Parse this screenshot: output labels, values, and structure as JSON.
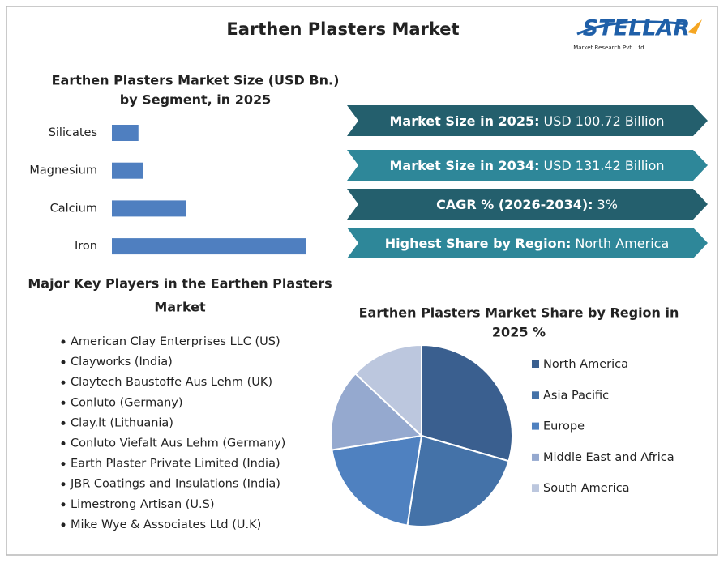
{
  "header": {
    "title": "Earthen Plasters Market",
    "logo": "STELLAR",
    "logo_subtitle": "Market Research Pvt. Ltd."
  },
  "stats": [
    {
      "label": "Market Size in 2025:",
      "value": "USD 100.72 Billion"
    },
    {
      "label": "Market Size in 2034:",
      "value": "USD 131.42 Billion"
    },
    {
      "label": "CAGR % (2026-2034):",
      "value": "3%"
    },
    {
      "label": "Highest Share by Region:",
      "value": "North America"
    }
  ],
  "key_players": {
    "title": [
      "Major Key Players in the Earthen Plasters",
      "Market"
    ],
    "items": [
      "American Clay Enterprises LLC (US)",
      "Clayworks (India)",
      "Claytech Baustoffe Aus Lehm (UK)",
      "Conluto (Germany)",
      "Clay.lt (Lithuania)",
      "Conluto Viefalt Aus Lehm (Germany)",
      "Earth Plaster Private Limited (India)",
      "JBR Coatings and Insulations (India)",
      "Limestrong Artisan (U.S)",
      "Mike Wye & Associates Ltd (U.K)"
    ]
  },
  "chart_data": [
    {
      "type": "bar",
      "orientation": "horizontal",
      "title": [
        "Earthen Plasters Market Size (USD Bn.)",
        "by Segment, in 2025"
      ],
      "categories": [
        "Silicates",
        "Magnesium",
        "Calcium",
        "Iron"
      ],
      "values": [
        8.2,
        9.7,
        23.0,
        59.8
      ],
      "color": "#4f7fc0"
    },
    {
      "type": "pie",
      "title": [
        "Earthen Plasters Market Share by Region in",
        "2025 %"
      ],
      "categories": [
        "North America",
        "Asia Pacific",
        "Europe",
        "Middle East and Africa",
        "South America"
      ],
      "values": [
        29.5,
        23,
        20,
        14.5,
        13
      ],
      "colors": [
        "#3a5f8f",
        "#4472a8",
        "#4f81c0",
        "#95a9cf",
        "#bcc7de"
      ],
      "legend": "right"
    }
  ]
}
